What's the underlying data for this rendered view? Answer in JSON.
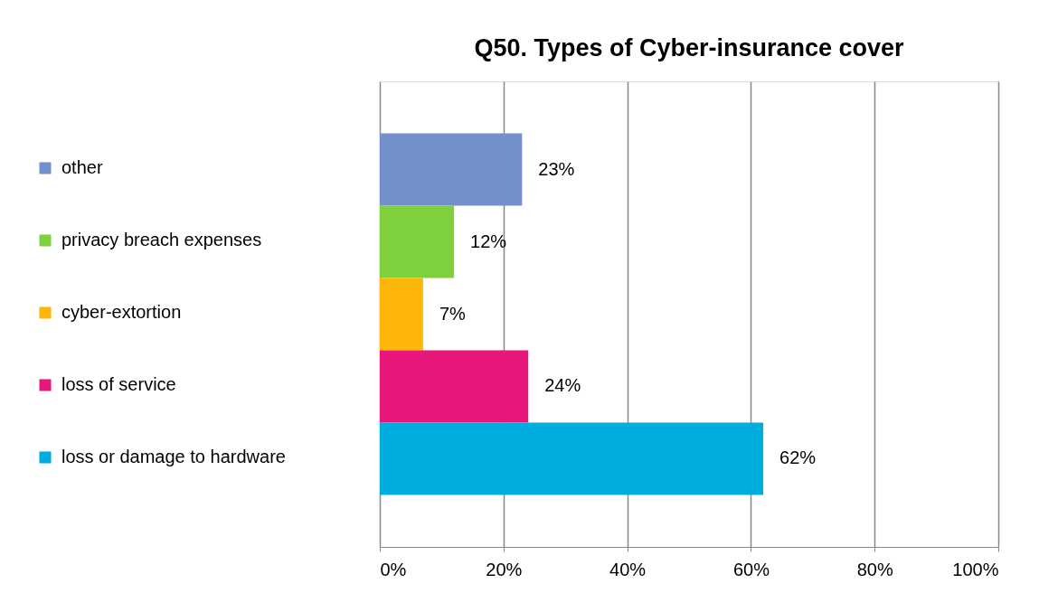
{
  "chart_data": {
    "type": "bar",
    "title": "Q50. Types of Cyber-insurance cover",
    "orientation": "horizontal",
    "categories": [
      null
    ],
    "series": [
      {
        "name": "other",
        "color": "#7490cc",
        "values": [
          23
        ],
        "value_labels": [
          "23%"
        ]
      },
      {
        "name": "privacy breach expenses",
        "color": "#7ed13c",
        "values": [
          12
        ],
        "value_labels": [
          "12%"
        ]
      },
      {
        "name": "cyber-extortion",
        "color": "#ffb60a",
        "values": [
          7
        ],
        "value_labels": [
          "7%"
        ]
      },
      {
        "name": "loss of service",
        "color": "#e8177b",
        "values": [
          24
        ],
        "value_labels": [
          "24%"
        ]
      },
      {
        "name": "loss or damage to hardware",
        "color": "#00addf",
        "values": [
          62
        ],
        "value_labels": [
          "62%"
        ]
      }
    ],
    "xlim": [
      0,
      100
    ],
    "xticks": [
      {
        "value": 0,
        "label": "0%"
      },
      {
        "value": 20,
        "label": "20%"
      },
      {
        "value": 40,
        "label": "40%"
      },
      {
        "value": 60,
        "label": "60%"
      },
      {
        "value": 80,
        "label": "80%"
      },
      {
        "value": 100,
        "label": "100%"
      }
    ],
    "grid": "x",
    "legend": "left"
  }
}
